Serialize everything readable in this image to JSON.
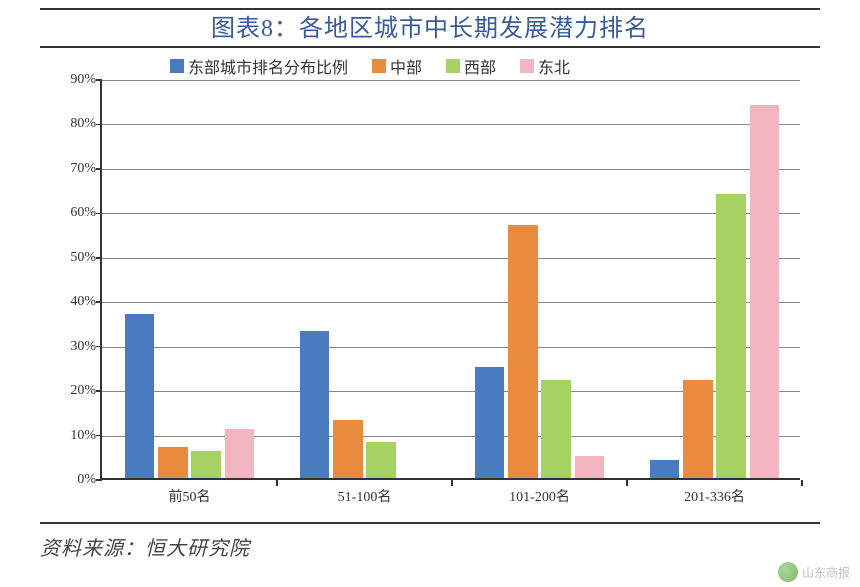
{
  "title": "图表8：各地区城市中长期发展潜力排名",
  "source": "资料来源：恒大研究院",
  "watermark": "山东商报",
  "chart": {
    "type": "bar",
    "background_color": "#ffffff",
    "grid_color": "#7a7a7a",
    "axis_color": "#333333",
    "ylim": [
      0,
      90
    ],
    "ytick_step": 10,
    "ylabel_suffix": "%",
    "yaxis_fontsize": 14,
    "xaxis_fontsize": 14,
    "title_fontsize": 24,
    "title_color": "#3a5a9a",
    "categories": [
      "前50名",
      "51-100名",
      "101-200名",
      "201-336名"
    ],
    "series": [
      {
        "name": "东部城市排名分布比例",
        "color": "#4a7bbf",
        "values": [
          37,
          33,
          25,
          4
        ]
      },
      {
        "name": "中部",
        "color": "#e98b3f",
        "values": [
          7,
          13,
          57,
          22
        ]
      },
      {
        "name": "西部",
        "color": "#a6d264",
        "values": [
          6,
          8,
          22,
          64
        ]
      },
      {
        "name": "东北",
        "color": "#f1b6c0",
        "values": [
          11,
          0,
          5,
          84
        ]
      }
    ],
    "legend_fontsize": 16,
    "bar_width_ratio": 0.17,
    "group_gap_ratio": 0.06
  }
}
